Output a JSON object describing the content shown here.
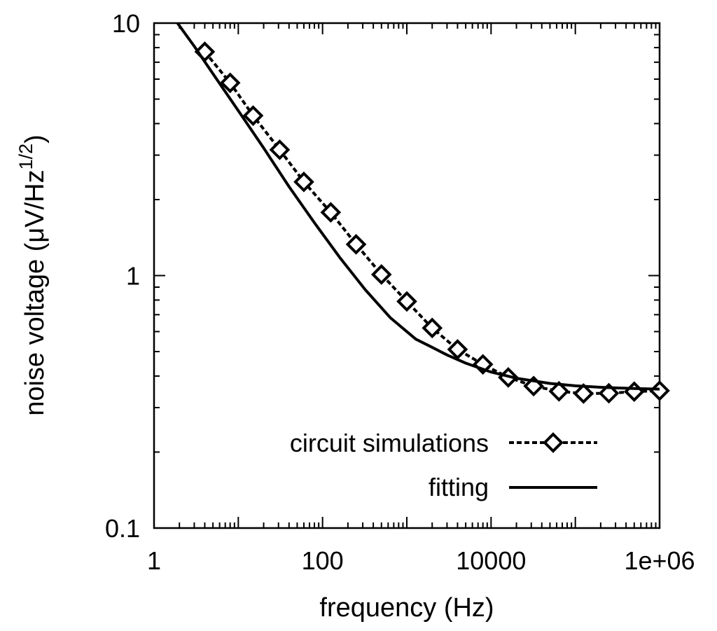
{
  "chart_data": {
    "type": "line",
    "title": "",
    "xlabel": "frequency (Hz)",
    "ylabel_main": "noise voltage (μV/Hz",
    "ylabel_sup": "1/2",
    "ylabel_close": ")",
    "xscale": "log",
    "yscale": "log",
    "xlim": [
      1,
      1000000
    ],
    "ylim": [
      0.1,
      10
    ],
    "xticks": [
      {
        "value": 1,
        "label": "1"
      },
      {
        "value": 100,
        "label": "100"
      },
      {
        "value": 10000,
        "label": "10000"
      },
      {
        "value": 1000000,
        "label": "1e+06"
      }
    ],
    "yticks": [
      {
        "value": 0.1,
        "label": "0.1"
      },
      {
        "value": 1,
        "label": "1"
      },
      {
        "value": 10,
        "label": "10"
      }
    ],
    "grid": false,
    "legend_position": "bottom-right",
    "series": [
      {
        "name": "circuit simulations",
        "style": "dashed-with-diamond-markers",
        "color": "#000000",
        "x": [
          4,
          8,
          15,
          31,
          60,
          125,
          250,
          500,
          1000,
          2000,
          4000,
          8000,
          16000,
          32000,
          64000,
          125000,
          250000,
          500000,
          1000000
        ],
        "y": [
          7.7,
          5.8,
          4.3,
          3.15,
          2.35,
          1.78,
          1.33,
          1.01,
          0.79,
          0.62,
          0.51,
          0.445,
          0.395,
          0.365,
          0.348,
          0.341,
          0.342,
          0.347,
          0.35
        ]
      },
      {
        "name": "fitting",
        "style": "solid",
        "color": "#000000",
        "x": [
          1.9,
          3,
          5,
          10,
          20,
          40,
          80,
          160,
          320,
          640,
          1280,
          2000,
          3000,
          5000,
          10000,
          20000,
          50000,
          100000,
          200000,
          500000,
          1000000
        ],
        "y": [
          10,
          8.1,
          6.3,
          4.5,
          3.2,
          2.25,
          1.62,
          1.18,
          0.88,
          0.68,
          0.56,
          0.52,
          0.485,
          0.45,
          0.415,
          0.392,
          0.374,
          0.366,
          0.361,
          0.357,
          0.355
        ]
      }
    ]
  }
}
